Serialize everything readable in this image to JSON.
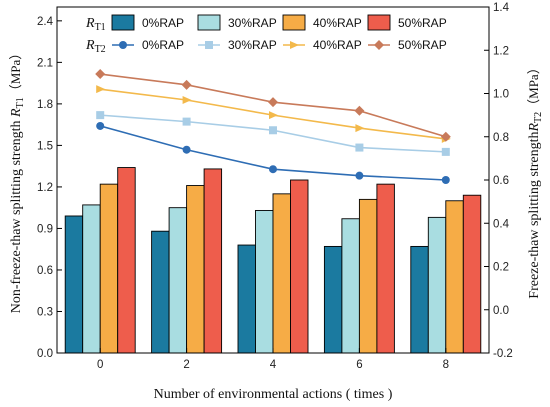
{
  "chart_data": {
    "type": "bar+line",
    "xlabel": "Number of environmental actions ( times )",
    "ylabel_left": "Non-freeze-thaw splitting strength R_T1（MPa）",
    "ylabel_left_main": "Non-freeze-thaw splitting strength ",
    "ylabel_left_sym": "R",
    "ylabel_left_sub": "T1",
    "ylabel_left_unit": "（MPa）",
    "ylabel_right": "Freeze-thaw splitting strength R_T2（MPa）",
    "ylabel_right_main": "Freeze-thaw splitting strength",
    "ylabel_right_sym": "R",
    "ylabel_right_sub": "T2",
    "ylabel_right_unit": "（MPa）",
    "categories": [
      "0",
      "2",
      "4",
      "6",
      "8"
    ],
    "ylim_left": [
      0,
      2.5
    ],
    "yticks_left": [
      "0.0",
      "0.3",
      "0.6",
      "0.9",
      "1.2",
      "1.5",
      "1.8",
      "2.1",
      "2.4"
    ],
    "ylim_right": [
      -0.2,
      1.4
    ],
    "yticks_right": [
      "-0.2",
      "0.0",
      "0.2",
      "0.4",
      "0.6",
      "0.8",
      "1.0",
      "1.2",
      "1.4"
    ],
    "legend_placement": "top",
    "legend_row1_label": "R",
    "legend_row1_sub": "T1",
    "legend_row2_label": "R",
    "legend_row2_sub": "T2",
    "bar_series": [
      {
        "name": "0%RAP",
        "color": "#1b7aa0",
        "values": [
          0.99,
          0.88,
          0.78,
          0.77,
          0.77
        ]
      },
      {
        "name": "30%RAP",
        "color": "#a9dde1",
        "values": [
          1.07,
          1.05,
          1.03,
          0.97,
          0.98
        ]
      },
      {
        "name": "40%RAP",
        "color": "#f6ac46",
        "values": [
          1.22,
          1.21,
          1.15,
          1.11,
          1.1
        ]
      },
      {
        "name": "50%RAP",
        "color": "#ee5d4c",
        "values": [
          1.34,
          1.33,
          1.25,
          1.22,
          1.14
        ]
      }
    ],
    "line_series": [
      {
        "name": "0%RAP",
        "color": "#2e6db4",
        "marker": "circle",
        "values": [
          0.85,
          0.74,
          0.65,
          0.62,
          0.6
        ]
      },
      {
        "name": "30%RAP",
        "color": "#a8cde6",
        "marker": "square",
        "values": [
          0.9,
          0.87,
          0.83,
          0.75,
          0.73
        ]
      },
      {
        "name": "40%RAP",
        "color": "#f3b94b",
        "marker": "triangle",
        "values": [
          1.02,
          0.97,
          0.9,
          0.84,
          0.79
        ]
      },
      {
        "name": "50%RAP",
        "color": "#c87a5a",
        "marker": "diamond",
        "values": [
          1.09,
          1.04,
          0.96,
          0.92,
          0.8
        ]
      }
    ],
    "grid": false
  }
}
